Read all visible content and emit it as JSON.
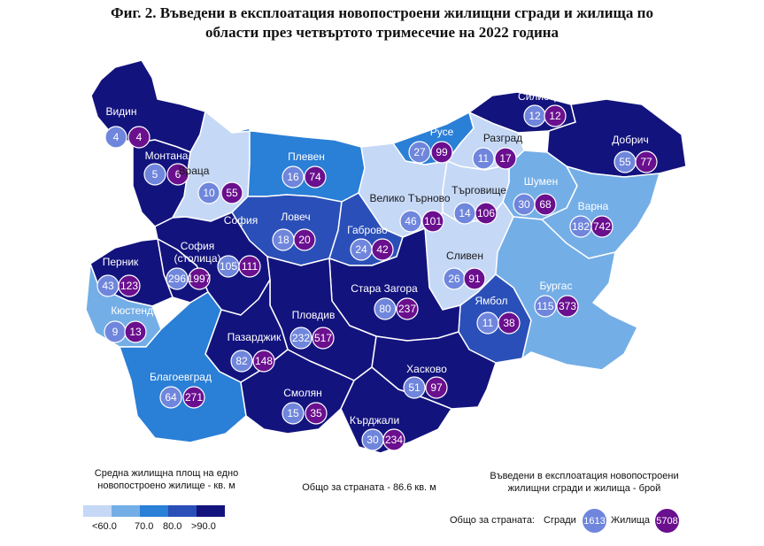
{
  "title_line1": "Фиг. 2. Въведени в експлоатация новопостроени жилищни сгради и жилища по",
  "title_line2": "области през четвъртото тримесечие на 2022 година",
  "colors": {
    "c1": "#c5d8f6",
    "c2": "#74aee6",
    "c3": "#2a7fd6",
    "c4": "#2b4fb8",
    "c5": "#13137e",
    "buildings_bubble": "#6f86dc",
    "dwellings_bubble": "#6a0f8e"
  },
  "regions": [
    {
      "name": "Видин",
      "buildings": "4",
      "dwellings": "4"
    },
    {
      "name": "Монтана",
      "buildings": "5",
      "dwellings": "6"
    },
    {
      "name": "Враца",
      "buildings": "10",
      "dwellings": "55"
    },
    {
      "name": "Плевен",
      "buildings": "16",
      "dwellings": "74"
    },
    {
      "name": "Русе",
      "buildings": "27",
      "dwellings": "99"
    },
    {
      "name": "Силистра",
      "buildings": "12",
      "dwellings": "12"
    },
    {
      "name": "Разград",
      "buildings": "11",
      "dwellings": "17"
    },
    {
      "name": "Добрич",
      "buildings": "55",
      "dwellings": "77"
    },
    {
      "name": "Шумен",
      "buildings": "30",
      "dwellings": "68"
    },
    {
      "name": "Търговище",
      "buildings": "14",
      "dwellings": "106"
    },
    {
      "name": "Велико Търново",
      "buildings": "46",
      "dwellings": "101"
    },
    {
      "name": "Варна",
      "buildings": "182",
      "dwellings": "742"
    },
    {
      "name": "Ловеч",
      "buildings": "18",
      "dwellings": "20"
    },
    {
      "name": "Габрово",
      "buildings": "24",
      "dwellings": "42"
    },
    {
      "name": "София",
      "buildings": "105",
      "dwellings": "111"
    },
    {
      "name": "София (столица)",
      "buildings": "296",
      "dwellings": "1997"
    },
    {
      "name": "Перник",
      "buildings": "43",
      "dwellings": "123"
    },
    {
      "name": "Кюстендил",
      "buildings": "9",
      "dwellings": "13"
    },
    {
      "name": "Сливен",
      "buildings": "26",
      "dwellings": "91"
    },
    {
      "name": "Ямбол",
      "buildings": "11",
      "dwellings": "38"
    },
    {
      "name": "Бургас",
      "buildings": "115",
      "dwellings": "373"
    },
    {
      "name": "Стара Загора",
      "buildings": "80",
      "dwellings": "237"
    },
    {
      "name": "Пловдив",
      "buildings": "232",
      "dwellings": "517"
    },
    {
      "name": "Пазарджик",
      "buildings": "82",
      "dwellings": "148"
    },
    {
      "name": "Благоевград",
      "buildings": "64",
      "dwellings": "271"
    },
    {
      "name": "Смолян",
      "buildings": "15",
      "dwellings": "35"
    },
    {
      "name": "Хасково",
      "buildings": "51",
      "dwellings": "97"
    },
    {
      "name": "Кърджали",
      "buildings": "30",
      "dwellings": "234"
    }
  ],
  "legend": {
    "area_title_line1": "Средна жилищна площ на едно",
    "area_title_line2": "новопостроено жилище - кв. м",
    "country_area": "Общо за страната - 86.6 кв. м",
    "ticks": [
      "<60.0",
      "70.0",
      "80.0",
      ">90.0"
    ],
    "count_title_line1": "Въведени в експлоатация новопостроени",
    "count_title_line2": "жилищни сгради и жилища - брой",
    "country_total": "Общо за страната:",
    "buildings_label": "Сгради",
    "buildings_total": "1613",
    "dwellings_label": "Жилища",
    "dwellings_total": "5708"
  }
}
